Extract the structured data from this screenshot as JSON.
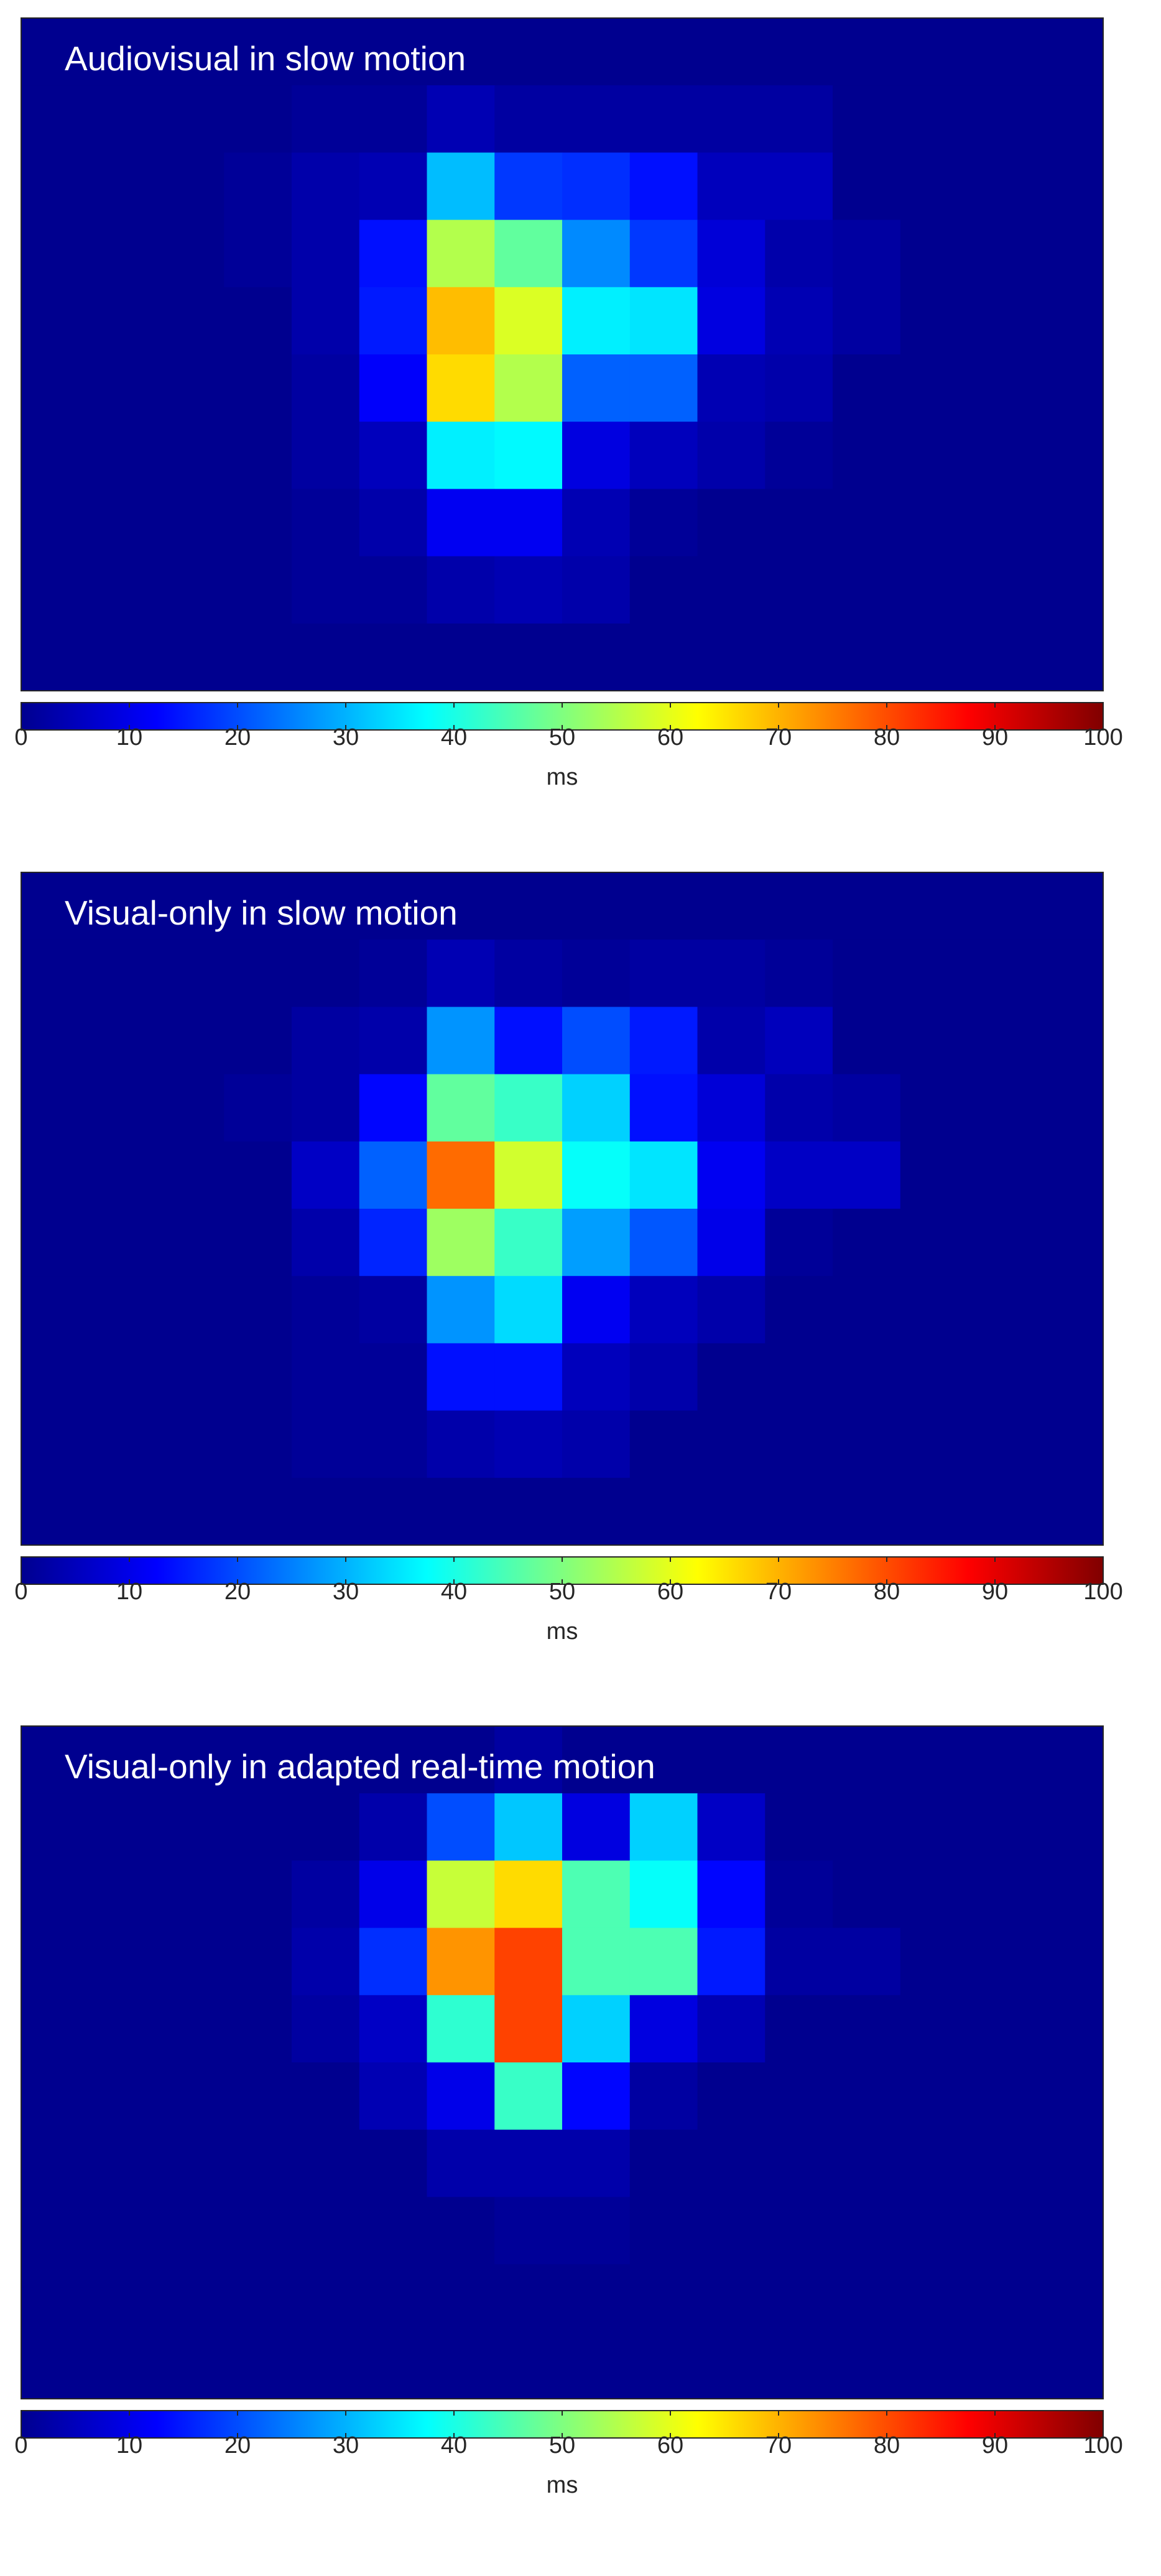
{
  "colormap": {
    "name": "jet",
    "stops": [
      "#00008f",
      "#0000ff",
      "#00ffff",
      "#ffff00",
      "#ff0000",
      "#800000"
    ]
  },
  "chart_data": [
    {
      "type": "heatmap",
      "title": "Audiovisual in slow motion",
      "cols": 16,
      "rows": 10,
      "zlim": [
        0,
        100
      ],
      "colorbar": {
        "ticks": [
          0,
          10,
          20,
          30,
          40,
          50,
          60,
          70,
          80,
          90,
          100
        ],
        "label": "ms"
      },
      "grid": false,
      "values": [
        [
          0,
          0,
          0,
          0,
          0,
          0,
          0,
          0,
          0,
          0,
          0,
          0,
          0,
          0,
          0,
          0
        ],
        [
          0,
          0,
          0,
          0,
          1,
          1,
          4,
          2,
          2,
          2,
          2,
          2,
          0,
          0,
          0,
          0
        ],
        [
          0,
          0,
          0,
          1,
          3,
          4,
          31,
          18,
          17,
          14,
          5,
          5,
          0,
          0,
          0,
          0
        ],
        [
          0,
          0,
          0,
          1,
          3,
          14,
          55,
          47,
          26,
          18,
          8,
          3,
          2,
          0,
          0,
          0
        ],
        [
          0,
          0,
          0,
          0,
          3,
          15,
          69,
          59,
          36,
          35,
          9,
          4,
          2,
          0,
          0,
          0
        ],
        [
          0,
          0,
          0,
          0,
          2,
          12,
          66,
          55,
          22,
          22,
          4,
          3,
          0,
          0,
          0,
          0
        ],
        [
          0,
          0,
          0,
          0,
          2,
          5,
          36,
          37,
          9,
          5,
          3,
          1,
          0,
          0,
          0,
          0
        ],
        [
          0,
          0,
          0,
          0,
          1,
          3,
          11,
          11,
          4,
          1,
          0,
          0,
          0,
          0,
          0,
          0
        ],
        [
          0,
          0,
          0,
          0,
          1,
          1,
          3,
          4,
          3,
          0,
          0,
          0,
          0,
          0,
          0,
          0
        ],
        [
          0,
          0,
          0,
          0,
          0,
          0,
          0,
          0,
          0,
          0,
          0,
          0,
          0,
          0,
          0,
          0
        ]
      ]
    },
    {
      "type": "heatmap",
      "title": "Visual-only in slow motion",
      "cols": 16,
      "rows": 10,
      "zlim": [
        0,
        100
      ],
      "colorbar": {
        "ticks": [
          0,
          10,
          20,
          30,
          40,
          50,
          60,
          70,
          80,
          90,
          100
        ],
        "label": "ms"
      },
      "grid": false,
      "values": [
        [
          0,
          0,
          0,
          0,
          0,
          0,
          0,
          0,
          0,
          0,
          0,
          0,
          0,
          0,
          0,
          0
        ],
        [
          0,
          0,
          0,
          0,
          0,
          1,
          4,
          2,
          1,
          2,
          2,
          1,
          0,
          0,
          0,
          0
        ],
        [
          0,
          0,
          0,
          0,
          2,
          3,
          27,
          14,
          20,
          15,
          3,
          5,
          0,
          0,
          0,
          0
        ],
        [
          0,
          0,
          0,
          1,
          2,
          13,
          47,
          43,
          33,
          14,
          8,
          3,
          2,
          0,
          0,
          0
        ],
        [
          0,
          0,
          0,
          0,
          6,
          22,
          77,
          58,
          38,
          35,
          11,
          6,
          6,
          0,
          0,
          0
        ],
        [
          0,
          0,
          0,
          0,
          3,
          16,
          53,
          43,
          28,
          21,
          10,
          1,
          0,
          0,
          0,
          0
        ],
        [
          0,
          0,
          0,
          0,
          1,
          2,
          27,
          34,
          11,
          5,
          3,
          0,
          0,
          0,
          0,
          0
        ],
        [
          0,
          0,
          0,
          0,
          1,
          1,
          14,
          14,
          5,
          3,
          0,
          0,
          0,
          0,
          0,
          0
        ],
        [
          0,
          0,
          0,
          0,
          1,
          1,
          3,
          4,
          3,
          0,
          0,
          0,
          0,
          0,
          0,
          0
        ],
        [
          0,
          0,
          0,
          0,
          0,
          0,
          0,
          0,
          0,
          0,
          0,
          0,
          0,
          0,
          0,
          0
        ]
      ]
    },
    {
      "type": "heatmap",
      "title": "Visual-only in adapted real-time motion",
      "cols": 16,
      "rows": 10,
      "zlim": [
        0,
        100
      ],
      "colorbar": {
        "ticks": [
          0,
          10,
          20,
          30,
          40,
          50,
          60,
          70,
          80,
          90,
          100
        ],
        "label": "ms"
      },
      "grid": false,
      "values": [
        [
          0,
          0,
          0,
          0,
          0,
          0,
          0,
          2,
          0,
          0,
          0,
          0,
          0,
          0,
          0,
          0
        ],
        [
          0,
          0,
          0,
          0,
          0,
          3,
          20,
          32,
          9,
          33,
          6,
          0,
          0,
          0,
          0,
          0
        ],
        [
          0,
          0,
          0,
          0,
          2,
          10,
          57,
          66,
          45,
          38,
          13,
          1,
          0,
          0,
          0,
          0
        ],
        [
          0,
          0,
          0,
          0,
          3,
          17,
          73,
          81,
          45,
          45,
          15,
          2,
          2,
          0,
          0,
          0
        ],
        [
          0,
          0,
          0,
          0,
          2,
          6,
          42,
          81,
          33,
          9,
          4,
          0,
          0,
          0,
          0,
          0
        ],
        [
          0,
          0,
          0,
          0,
          0,
          4,
          10,
          43,
          13,
          2,
          0,
          0,
          0,
          0,
          0,
          0
        ],
        [
          0,
          0,
          0,
          0,
          0,
          0,
          3,
          3,
          3,
          0,
          0,
          0,
          0,
          0,
          0,
          0
        ],
        [
          0,
          0,
          0,
          0,
          0,
          0,
          0,
          1,
          1,
          0,
          0,
          0,
          0,
          0,
          0,
          0
        ],
        [
          0,
          0,
          0,
          0,
          0,
          0,
          0,
          0,
          0,
          0,
          0,
          0,
          0,
          0,
          0,
          0
        ],
        [
          0,
          0,
          0,
          0,
          0,
          0,
          0,
          0,
          0,
          0,
          0,
          0,
          0,
          0,
          0,
          0
        ]
      ]
    }
  ]
}
